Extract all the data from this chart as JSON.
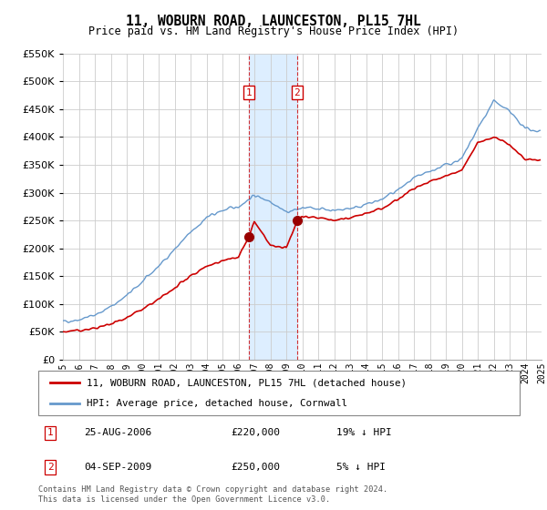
{
  "title": "11, WOBURN ROAD, LAUNCESTON, PL15 7HL",
  "subtitle": "Price paid vs. HM Land Registry's House Price Index (HPI)",
  "legend_line1": "11, WOBURN ROAD, LAUNCESTON, PL15 7HL (detached house)",
  "legend_line2": "HPI: Average price, detached house, Cornwall",
  "transaction1_date": "25-AUG-2006",
  "transaction1_price": "£220,000",
  "transaction1_hpi": "19% ↓ HPI",
  "transaction2_date": "04-SEP-2009",
  "transaction2_price": "£250,000",
  "transaction2_hpi": "5% ↓ HPI",
  "footer": "Contains HM Land Registry data © Crown copyright and database right 2024.\nThis data is licensed under the Open Government Licence v3.0.",
  "hpi_color": "#6699cc",
  "price_color": "#cc0000",
  "shading_color": "#ddeeff",
  "marker_color": "#990000",
  "transaction1_x": 2006.65,
  "transaction2_x": 2009.67,
  "transaction1_y": 220000,
  "transaction2_y": 250000,
  "ylim_min": 0,
  "ylim_max": 550000,
  "xlim_min": 1995,
  "xlim_max": 2025,
  "yticks": [
    0,
    50000,
    100000,
    150000,
    200000,
    250000,
    300000,
    350000,
    400000,
    450000,
    500000,
    550000
  ],
  "xticks": [
    1995,
    1996,
    1997,
    1998,
    1999,
    2000,
    2001,
    2002,
    2003,
    2004,
    2005,
    2006,
    2007,
    2008,
    2009,
    2010,
    2011,
    2012,
    2013,
    2014,
    2015,
    2016,
    2017,
    2018,
    2019,
    2020,
    2021,
    2022,
    2023,
    2024,
    2025
  ],
  "hpi_years": [
    1995,
    1996,
    1997,
    1998,
    1999,
    2000,
    2001,
    2002,
    2003,
    2004,
    2005,
    2006,
    2007,
    2008,
    2009,
    2010,
    2011,
    2012,
    2013,
    2014,
    2015,
    2016,
    2017,
    2018,
    2019,
    2020,
    2021,
    2022,
    2023,
    2024,
    2024.9
  ],
  "hpi_values": [
    68000,
    72000,
    80000,
    95000,
    115000,
    140000,
    168000,
    198000,
    228000,
    255000,
    268000,
    275000,
    295000,
    285000,
    265000,
    272000,
    272000,
    268000,
    272000,
    278000,
    288000,
    305000,
    325000,
    338000,
    350000,
    360000,
    415000,
    465000,
    445000,
    415000,
    410000
  ],
  "price_years": [
    1995,
    1996,
    1997,
    1998,
    1999,
    2000,
    2001,
    2002,
    2003,
    2004,
    2005,
    2006,
    2006.65,
    2007,
    2008,
    2009,
    2009.67,
    2010,
    2011,
    2012,
    2013,
    2014,
    2015,
    2016,
    2017,
    2018,
    2019,
    2020,
    2021,
    2022,
    2023,
    2024,
    2024.9
  ],
  "price_values": [
    50000,
    52000,
    56000,
    64000,
    76000,
    90000,
    108000,
    128000,
    150000,
    168000,
    178000,
    183000,
    220000,
    248000,
    205000,
    200000,
    250000,
    258000,
    255000,
    250000,
    255000,
    262000,
    272000,
    288000,
    308000,
    320000,
    330000,
    340000,
    390000,
    400000,
    385000,
    360000,
    360000
  ]
}
